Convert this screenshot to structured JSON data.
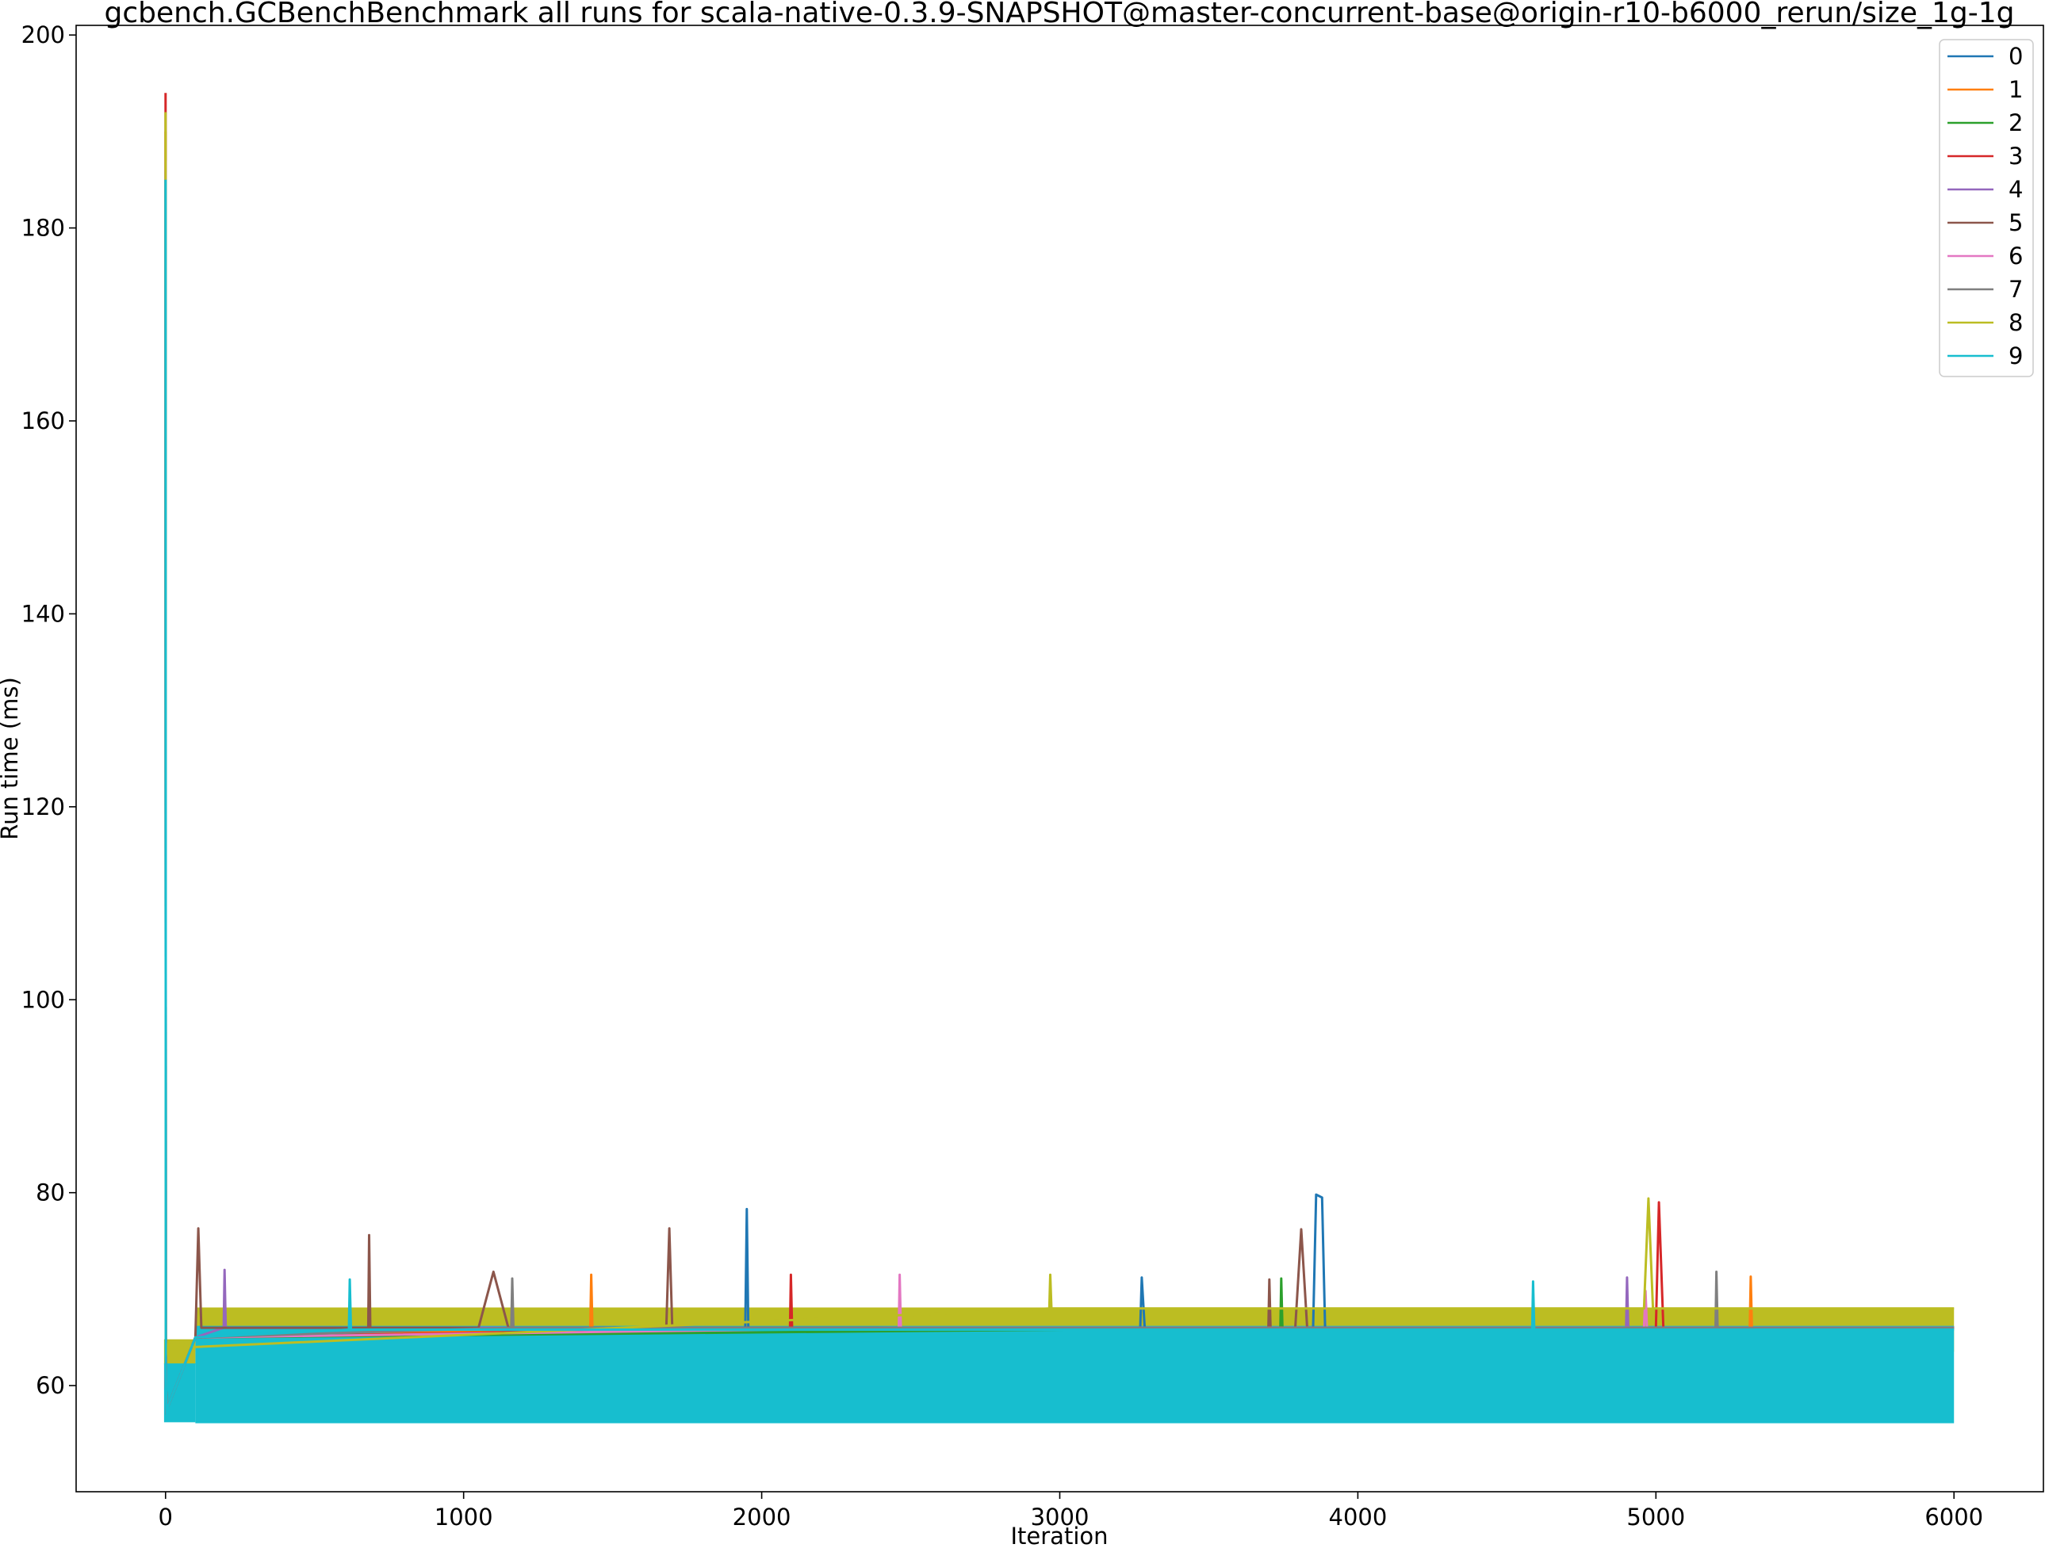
{
  "chart_data": {
    "type": "line",
    "title": "gcbench.GCBenchBenchmark all runs for scala-native-0.3.9-SNAPSHOT@master-concurrent-base@origin-r10-b6000_rerun/size_1g-1g",
    "xlabel": "Iteration",
    "ylabel": "Run time (ms)",
    "xlim": [
      -300,
      6300
    ],
    "ylim": [
      49,
      201
    ],
    "xticks": [
      0,
      1000,
      2000,
      3000,
      4000,
      5000,
      6000
    ],
    "yticks": [
      60,
      80,
      100,
      120,
      140,
      160,
      180,
      200
    ],
    "grid": false,
    "legend_position": "upper right",
    "colors": [
      "#1f77b4",
      "#ff7f0e",
      "#2ca02c",
      "#d62728",
      "#9467bd",
      "#8c564b",
      "#e377c2",
      "#7f7f7f",
      "#bcbd22",
      "#17becf"
    ],
    "series": [
      {
        "name": "0",
        "x": [
          0,
          1,
          3,
          10,
          100,
          1945,
          1950,
          1955,
          3270,
          3275,
          3285,
          3850,
          3860,
          3880,
          3890,
          6000
        ],
        "y": [
          180,
          62,
          57,
          58,
          65,
          66,
          78.3,
          66,
          66,
          71.2,
          66,
          66,
          79.8,
          79.5,
          66,
          66
        ]
      },
      {
        "name": "1",
        "x": [
          0,
          1,
          3,
          10,
          100,
          1425,
          1428,
          1432,
          5315,
          5318,
          5322,
          6000
        ],
        "y": [
          190,
          62,
          57,
          58,
          65,
          66,
          71.5,
          66,
          66,
          71.3,
          66,
          66
        ]
      },
      {
        "name": "2",
        "x": [
          0,
          1,
          3,
          10,
          100,
          3740,
          3743,
          3747,
          6000
        ],
        "y": [
          183,
          62,
          57,
          58,
          65,
          66,
          71.1,
          66,
          66
        ]
      },
      {
        "name": "3",
        "x": [
          0,
          1,
          3,
          10,
          100,
          2095,
          2098,
          2102,
          5000,
          5010,
          5025,
          6000
        ],
        "y": [
          194,
          62,
          57,
          58,
          65,
          66,
          71.5,
          66,
          66,
          79.0,
          66,
          66
        ]
      },
      {
        "name": "4",
        "x": [
          0,
          1,
          3,
          10,
          100,
          195,
          198,
          202,
          4900,
          4903,
          4907,
          6000
        ],
        "y": [
          186,
          62,
          57,
          58,
          65,
          66,
          72,
          66,
          66,
          71.2,
          66,
          66
        ]
      },
      {
        "name": "5",
        "x": [
          0,
          1,
          3,
          10,
          100,
          110,
          120,
          680,
          683,
          687,
          1050,
          1100,
          1150,
          1680,
          1690,
          1700,
          3700,
          3703,
          3707,
          3790,
          3810,
          3830,
          6000
        ],
        "y": [
          184,
          62,
          57,
          58,
          65,
          76.3,
          66,
          66,
          75.6,
          66,
          66,
          71.8,
          66,
          66,
          76.3,
          66,
          66,
          71,
          66,
          66,
          76.2,
          66,
          66
        ]
      },
      {
        "name": "6",
        "x": [
          0,
          1,
          3,
          10,
          100,
          2460,
          2463,
          2467,
          4960,
          4965,
          4970,
          6000
        ],
        "y": [
          187,
          62,
          57,
          58,
          65,
          66,
          71.5,
          66,
          66,
          69.8,
          66,
          66
        ]
      },
      {
        "name": "7",
        "x": [
          0,
          1,
          3,
          10,
          100,
          1160,
          1163,
          1167,
          5200,
          5203,
          5207,
          6000
        ],
        "y": [
          185,
          62,
          57,
          58,
          65,
          66,
          71.1,
          66,
          66,
          71.8,
          66,
          66
        ]
      },
      {
        "name": "8",
        "x": [
          0,
          1,
          3,
          10,
          100,
          2965,
          2968,
          2972,
          4960,
          4975,
          4990,
          6000
        ],
        "y": [
          192,
          63,
          63.5,
          64.5,
          64,
          68,
          71.5,
          68,
          68,
          79.4,
          68,
          68
        ]
      },
      {
        "name": "9",
        "x": [
          0,
          1,
          3,
          10,
          100,
          615,
          618,
          622,
          4585,
          4588,
          4592,
          6000
        ],
        "y": [
          185,
          62,
          56.5,
          58,
          65,
          65.8,
          71,
          65.8,
          65.8,
          70.8,
          65.8,
          65.8
        ]
      }
    ]
  }
}
